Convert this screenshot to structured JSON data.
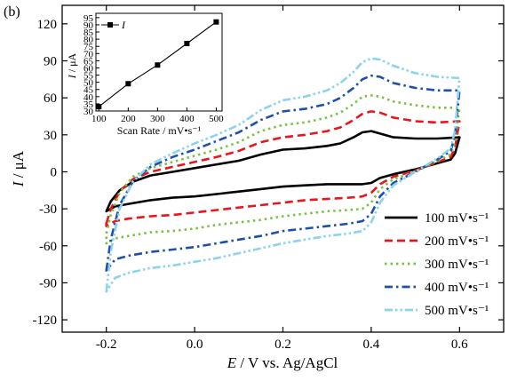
{
  "panel_label": "(b)",
  "chart_data": [
    {
      "type": "line",
      "xlabel_italic": "E",
      "xlabel_rest": " / V vs. Ag/AgCl",
      "ylabel_italic": "I",
      "ylabel_rest": " / μA",
      "xlim": [
        -0.3,
        0.7
      ],
      "ylim": [
        -130,
        135
      ],
      "x_ticks": [
        -0.2,
        0.0,
        0.2,
        0.4,
        0.6
      ],
      "x_tick_labels": [
        "-0.2",
        "0.0",
        "0.2",
        "0.4",
        "0.6"
      ],
      "y_ticks": [
        -120,
        -90,
        -60,
        -30,
        0,
        30,
        60,
        90,
        120
      ],
      "y_tick_labels": [
        "-120",
        "-90",
        "-60",
        "-30",
        "0",
        "30",
        "60",
        "90",
        "120"
      ],
      "grid": false,
      "legend_position": "bottom-right",
      "series": [
        {
          "name": "100 mV•s⁻¹",
          "color": "#000000",
          "dash": "solid",
          "forward": {
            "x": [
              -0.2,
              -0.19,
              -0.17,
              -0.14,
              -0.1,
              -0.05,
              0.0,
              0.05,
              0.1,
              0.15,
              0.2,
              0.25,
              0.3,
              0.33,
              0.36,
              0.38,
              0.4,
              0.42,
              0.45,
              0.5,
              0.55,
              0.6
            ],
            "y": [
              -32,
              -24,
              -15,
              -8,
              -3,
              0,
              3,
              6,
              9,
              14,
              18,
              19,
              21,
              23,
              28,
              32,
              33,
              31,
              28,
              27,
              27,
              28
            ]
          },
          "reverse": {
            "x": [
              0.6,
              0.59,
              0.58,
              0.55,
              0.5,
              0.45,
              0.42,
              0.4,
              0.38,
              0.35,
              0.3,
              0.25,
              0.2,
              0.15,
              0.1,
              0.05,
              0.0,
              -0.05,
              -0.1,
              -0.15,
              -0.18,
              -0.2
            ],
            "y": [
              28,
              15,
              10,
              7,
              2,
              -2,
              -5,
              -9,
              -10,
              -10,
              -10,
              -11,
              -12,
              -14,
              -16,
              -18,
              -20,
              -21,
              -23,
              -26,
              -28,
              -32
            ]
          }
        },
        {
          "name": "200 mV•s⁻¹",
          "color": "#e8161c",
          "dash": "dashed",
          "forward": {
            "x": [
              -0.2,
              -0.19,
              -0.17,
              -0.14,
              -0.1,
              -0.05,
              0.0,
              0.05,
              0.1,
              0.15,
              0.2,
              0.25,
              0.3,
              0.33,
              0.36,
              0.38,
              0.4,
              0.42,
              0.45,
              0.5,
              0.55,
              0.6
            ],
            "y": [
              -42,
              -30,
              -16,
              -6,
              0,
              4,
              8,
              12,
              17,
              24,
              28,
              30,
              33,
              36,
              42,
              47,
              49,
              48,
              44,
              41,
              40,
              41
            ]
          },
          "reverse": {
            "x": [
              0.6,
              0.59,
              0.58,
              0.55,
              0.5,
              0.45,
              0.42,
              0.4,
              0.38,
              0.35,
              0.3,
              0.25,
              0.2,
              0.15,
              0.1,
              0.05,
              0.0,
              -0.05,
              -0.1,
              -0.15,
              -0.18,
              -0.2
            ],
            "y": [
              41,
              20,
              12,
              8,
              1,
              -4,
              -10,
              -17,
              -20,
              -21,
              -22,
              -23,
              -25,
              -27,
              -29,
              -31,
              -33,
              -35,
              -36,
              -38,
              -40,
              -44
            ]
          }
        },
        {
          "name": "300 mV•s⁻¹",
          "color": "#7ac142",
          "dash": "dotted",
          "forward": {
            "x": [
              -0.2,
              -0.19,
              -0.17,
              -0.14,
              -0.1,
              -0.05,
              0.0,
              0.05,
              0.1,
              0.15,
              0.2,
              0.25,
              0.3,
              0.33,
              0.36,
              0.38,
              0.4,
              0.42,
              0.45,
              0.5,
              0.55,
              0.6
            ],
            "y": [
              -50,
              -35,
              -17,
              -4,
              3,
              8,
              13,
              18,
              24,
              33,
              38,
              40,
              44,
              48,
              55,
              61,
              62,
              61,
              57,
              54,
              52,
              52
            ]
          },
          "reverse": {
            "x": [
              0.6,
              0.59,
              0.58,
              0.55,
              0.5,
              0.45,
              0.42,
              0.4,
              0.38,
              0.35,
              0.3,
              0.25,
              0.2,
              0.15,
              0.1,
              0.05,
              0.0,
              -0.05,
              -0.1,
              -0.15,
              -0.18,
              -0.2
            ],
            "y": [
              52,
              24,
              14,
              9,
              0,
              -6,
              -14,
              -25,
              -30,
              -31,
              -32,
              -34,
              -36,
              -39,
              -41,
              -43,
              -46,
              -48,
              -49,
              -52,
              -54,
              -58
            ]
          }
        },
        {
          "name": "400 mV•s⁻¹",
          "color": "#1f4fa8",
          "dash": "dashdot",
          "forward": {
            "x": [
              -0.2,
              -0.19,
              -0.17,
              -0.14,
              -0.1,
              -0.05,
              0.0,
              0.05,
              0.1,
              0.15,
              0.2,
              0.25,
              0.3,
              0.33,
              0.36,
              0.38,
              0.4,
              0.42,
              0.45,
              0.5,
              0.55,
              0.6
            ],
            "y": [
              -80,
              -55,
              -27,
              -8,
              4,
              12,
              18,
              25,
              32,
              42,
              49,
              51,
              55,
              60,
              68,
              75,
              78,
              77,
              72,
              68,
              66,
              66
            ]
          },
          "reverse": {
            "x": [
              0.6,
              0.59,
              0.58,
              0.55,
              0.5,
              0.45,
              0.42,
              0.4,
              0.38,
              0.35,
              0.3,
              0.25,
              0.2,
              0.15,
              0.1,
              0.05,
              0.0,
              -0.05,
              -0.1,
              -0.15,
              -0.18,
              -0.2
            ],
            "y": [
              66,
              30,
              17,
              10,
              0,
              -9,
              -20,
              -34,
              -40,
              -42,
              -44,
              -46,
              -48,
              -52,
              -55,
              -58,
              -61,
              -63,
              -65,
              -68,
              -71,
              -80
            ]
          }
        },
        {
          "name": "500 mV•s⁻¹",
          "color": "#8dd3eb",
          "dash": "dashdotdot",
          "forward": {
            "x": [
              -0.2,
              -0.19,
              -0.17,
              -0.14,
              -0.1,
              -0.05,
              0.0,
              0.05,
              0.1,
              0.15,
              0.2,
              0.25,
              0.3,
              0.33,
              0.36,
              0.38,
              0.4,
              0.42,
              0.45,
              0.5,
              0.55,
              0.6
            ],
            "y": [
              -97,
              -65,
              -30,
              -8,
              6,
              15,
              23,
              30,
              38,
              50,
              58,
              61,
              66,
              72,
              81,
              89,
              92,
              91,
              86,
              80,
              77,
              76
            ]
          },
          "reverse": {
            "x": [
              0.6,
              0.59,
              0.58,
              0.55,
              0.5,
              0.45,
              0.42,
              0.4,
              0.38,
              0.35,
              0.3,
              0.25,
              0.2,
              0.15,
              0.1,
              0.05,
              0.0,
              -0.05,
              -0.1,
              -0.15,
              -0.18,
              -0.2
            ],
            "y": [
              76,
              34,
              19,
              11,
              0,
              -11,
              -25,
              -41,
              -48,
              -50,
              -52,
              -55,
              -58,
              -62,
              -66,
              -70,
              -73,
              -76,
              -78,
              -82,
              -86,
              -97
            ]
          }
        }
      ]
    },
    {
      "type": "line",
      "xlabel": "Scan Rate / mV•s⁻¹",
      "ylabel_italic": "I",
      "ylabel_rest": " / μA",
      "xlim": [
        90,
        520
      ],
      "ylim": [
        30,
        98
      ],
      "x_ticks": [
        100,
        200,
        300,
        400,
        500
      ],
      "x_tick_labels": [
        "100",
        "200",
        "300",
        "400",
        "500"
      ],
      "y_ticks": [
        30,
        35,
        40,
        45,
        50,
        55,
        60,
        65,
        70,
        75,
        80,
        85,
        90,
        95
      ],
      "y_tick_labels": [
        "30",
        "35",
        "40",
        "45",
        "50",
        "55",
        "60",
        "65",
        "70",
        "75",
        "80",
        "85",
        "90",
        "95"
      ],
      "legend_position": "top-left",
      "series": [
        {
          "name": "I",
          "x": [
            100,
            200,
            300,
            400,
            500
          ],
          "values": [
            33,
            49,
            62,
            77,
            92
          ]
        }
      ]
    }
  ]
}
